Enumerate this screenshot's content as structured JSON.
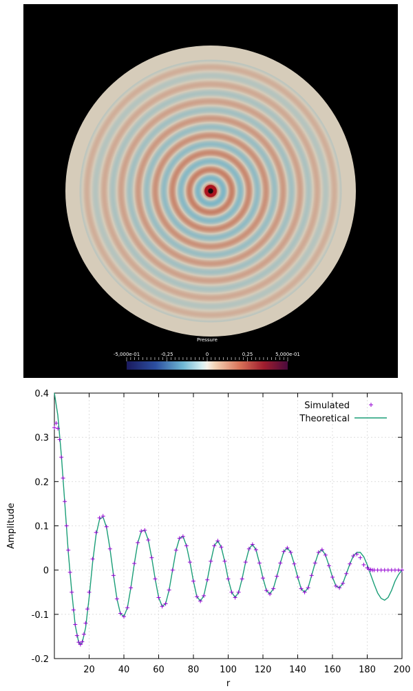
{
  "colorbar": {
    "title": "Pressure",
    "tick_labels": [
      "-5,000e-01",
      "-0,25",
      "0",
      "0,25",
      "5,000e-01"
    ],
    "range": [
      -0.5,
      0.5
    ]
  },
  "chart_data": {
    "type": "line",
    "xlabel": "r",
    "ylabel": "Amplitude",
    "xlim": [
      0,
      200
    ],
    "ylim": [
      -0.2,
      0.4
    ],
    "x_ticks": [
      "20",
      "40",
      "60",
      "80",
      "100",
      "120",
      "140",
      "160",
      "180",
      "200"
    ],
    "y_ticks": [
      "-0.2",
      "-0.1",
      "0",
      "0.1",
      "0.2",
      "0.3",
      "0.4"
    ],
    "grid": true,
    "legend_position": "top-right",
    "series": [
      {
        "name": "Simulated",
        "style": "points",
        "marker": "+",
        "color": "#9400d3",
        "x": [
          0,
          1,
          2,
          3,
          4,
          5,
          6,
          7,
          8,
          9,
          10,
          11,
          12,
          13,
          14,
          15,
          16,
          17,
          18,
          19,
          20,
          22,
          24,
          26,
          28,
          30,
          32,
          34,
          36,
          38,
          40,
          42,
          44,
          46,
          48,
          50,
          52,
          54,
          56,
          58,
          60,
          62,
          64,
          66,
          68,
          70,
          72,
          74,
          76,
          78,
          80,
          82,
          84,
          86,
          88,
          90,
          92,
          94,
          96,
          98,
          100,
          102,
          104,
          106,
          108,
          110,
          112,
          114,
          116,
          118,
          120,
          122,
          124,
          126,
          128,
          130,
          132,
          134,
          136,
          138,
          140,
          142,
          144,
          146,
          148,
          150,
          152,
          154,
          156,
          158,
          160,
          162,
          164,
          166,
          168,
          170,
          172,
          174,
          176,
          178,
          180,
          181,
          182,
          183,
          184,
          186,
          188,
          190,
          192,
          194,
          196,
          198,
          200
        ],
        "y": [
          0.322,
          0.332,
          0.32,
          0.295,
          0.255,
          0.208,
          0.155,
          0.1,
          0.045,
          -0.005,
          -0.05,
          -0.09,
          -0.123,
          -0.148,
          -0.163,
          -0.168,
          -0.162,
          -0.145,
          -0.12,
          -0.088,
          -0.05,
          0.025,
          0.085,
          0.118,
          0.122,
          0.098,
          0.048,
          -0.012,
          -0.065,
          -0.098,
          -0.105,
          -0.085,
          -0.04,
          0.015,
          0.062,
          0.088,
          0.09,
          0.068,
          0.028,
          -0.02,
          -0.062,
          -0.082,
          -0.076,
          -0.045,
          0.0,
          0.045,
          0.072,
          0.076,
          0.055,
          0.018,
          -0.025,
          -0.06,
          -0.07,
          -0.058,
          -0.022,
          0.02,
          0.055,
          0.066,
          0.052,
          0.02,
          -0.02,
          -0.05,
          -0.062,
          -0.05,
          -0.02,
          0.018,
          0.048,
          0.058,
          0.046,
          0.016,
          -0.018,
          -0.046,
          -0.054,
          -0.042,
          -0.014,
          0.016,
          0.042,
          0.05,
          0.04,
          0.014,
          -0.016,
          -0.042,
          -0.05,
          -0.04,
          -0.012,
          0.016,
          0.04,
          0.046,
          0.034,
          0.01,
          -0.016,
          -0.036,
          -0.04,
          -0.03,
          -0.008,
          0.014,
          0.032,
          0.036,
          0.028,
          0.012,
          0.005,
          0.002,
          0.001,
          0.0,
          0.0,
          0.0,
          0.0,
          0.0,
          0.0,
          0.0,
          0.0,
          0.0,
          0.0
        ]
      },
      {
        "name": "Theoretical",
        "style": "line",
        "color": "#1a9e77",
        "x": [
          0,
          2,
          4,
          6,
          8,
          10,
          12,
          14,
          15,
          16,
          18,
          20,
          22,
          24,
          26,
          28,
          30,
          32,
          34,
          36,
          38,
          40,
          42,
          44,
          46,
          48,
          50,
          52,
          54,
          56,
          58,
          60,
          62,
          64,
          66,
          68,
          70,
          72,
          74,
          76,
          78,
          80,
          82,
          84,
          86,
          88,
          90,
          92,
          94,
          96,
          98,
          100,
          102,
          104,
          106,
          108,
          110,
          112,
          114,
          116,
          118,
          120,
          122,
          124,
          126,
          128,
          130,
          132,
          134,
          136,
          138,
          140,
          142,
          144,
          146,
          148,
          150,
          152,
          154,
          156,
          158,
          160,
          162,
          164,
          166,
          168,
          170,
          172,
          174,
          176,
          178,
          180,
          182,
          184,
          186,
          188,
          190,
          192,
          194,
          196,
          198,
          200
        ],
        "y": [
          0.4,
          0.35,
          0.26,
          0.15,
          0.04,
          -0.05,
          -0.125,
          -0.163,
          -0.168,
          -0.164,
          -0.13,
          -0.062,
          0.018,
          0.08,
          0.115,
          0.12,
          0.096,
          0.048,
          -0.012,
          -0.065,
          -0.098,
          -0.105,
          -0.085,
          -0.04,
          0.015,
          0.062,
          0.088,
          0.09,
          0.068,
          0.028,
          -0.02,
          -0.062,
          -0.082,
          -0.076,
          -0.045,
          0.0,
          0.045,
          0.072,
          0.076,
          0.055,
          0.018,
          -0.025,
          -0.06,
          -0.07,
          -0.058,
          -0.022,
          0.02,
          0.055,
          0.066,
          0.052,
          0.02,
          -0.02,
          -0.05,
          -0.062,
          -0.05,
          -0.02,
          0.018,
          0.048,
          0.058,
          0.046,
          0.016,
          -0.018,
          -0.046,
          -0.054,
          -0.042,
          -0.014,
          0.016,
          0.042,
          0.05,
          0.04,
          0.014,
          -0.016,
          -0.042,
          -0.05,
          -0.04,
          -0.012,
          0.016,
          0.04,
          0.046,
          0.034,
          0.01,
          -0.016,
          -0.036,
          -0.04,
          -0.03,
          -0.008,
          0.014,
          0.032,
          0.04,
          0.04,
          0.03,
          0.012,
          -0.01,
          -0.032,
          -0.052,
          -0.064,
          -0.068,
          -0.062,
          -0.046,
          -0.025,
          -0.01,
          0.0
        ]
      }
    ]
  }
}
